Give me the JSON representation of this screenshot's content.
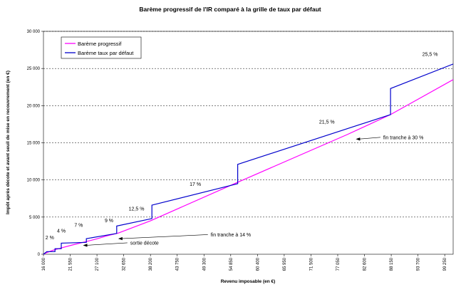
{
  "chart_data": {
    "type": "line",
    "title": "Barème progressif de l'IR comparé à la grille de taux par défaut",
    "xlabel": "Revenu imposable (en €)",
    "ylabel": "Impôt après décote et avant seuil de mise en recouvrement (en €)",
    "xlim": [
      16000,
      101000
    ],
    "ylim": [
      0,
      30000
    ],
    "x_ticks": [
      "16 000",
      "21 550",
      "27 100",
      "32 650",
      "38 200",
      "43 750",
      "49 300",
      "54 850",
      "60 400",
      "65 950",
      "71 500",
      "77 050",
      "82 600",
      "88 150",
      "93 700",
      "99 250"
    ],
    "x_tick_values": [
      16000,
      21550,
      27100,
      32650,
      38200,
      43750,
      49300,
      54850,
      60400,
      65950,
      71500,
      77050,
      82600,
      88150,
      93700,
      99250
    ],
    "y_ticks": [
      "0",
      "5 000",
      "10 000",
      "15 000",
      "20 000",
      "25 000",
      "30 000"
    ],
    "y_tick_values": [
      0,
      5000,
      10000,
      15000,
      20000,
      25000,
      30000
    ],
    "grid": "horizontal dashed",
    "legend_position": "top-left",
    "series": [
      {
        "name": "Barème progressif",
        "color": "#ff00ff",
        "points": [
          [
            16000,
            0
          ],
          [
            16600,
            200
          ],
          [
            18000,
            550
          ],
          [
            20000,
            900
          ],
          [
            22000,
            1250
          ],
          [
            24500,
            1650
          ],
          [
            27000,
            2050
          ],
          [
            29000,
            2450
          ],
          [
            31500,
            2850
          ],
          [
            38200,
            4500
          ],
          [
            56000,
            9600
          ],
          [
            79000,
            16100
          ],
          [
            88000,
            18800
          ],
          [
            101000,
            23500
          ]
        ]
      },
      {
        "name": "Barème taux par défaut",
        "color": "#0000cc",
        "points": [
          [
            16000,
            0
          ],
          [
            16700,
            350
          ],
          [
            17000,
            350
          ],
          [
            18400,
            350
          ],
          [
            18400,
            750
          ],
          [
            19700,
            750
          ],
          [
            19700,
            1500
          ],
          [
            24900,
            1600
          ],
          [
            24900,
            2100
          ],
          [
            31200,
            2800
          ],
          [
            31200,
            3800
          ],
          [
            38500,
            4800
          ],
          [
            38500,
            6600
          ],
          [
            56300,
            9500
          ],
          [
            56300,
            12100
          ],
          [
            88000,
            18800
          ],
          [
            88000,
            22300
          ],
          [
            101000,
            25600
          ]
        ]
      }
    ],
    "annotations": [
      {
        "text": "2 %",
        "x": 17300,
        "y": 2000
      },
      {
        "text": "4 %",
        "x": 19700,
        "y": 2900
      },
      {
        "text": "7 %",
        "x": 23300,
        "y": 3700
      },
      {
        "text": "9 %",
        "x": 29600,
        "y": 4300
      },
      {
        "text": "12,5 %",
        "x": 35300,
        "y": 5900
      },
      {
        "text": "17 %",
        "x": 47500,
        "y": 9200
      },
      {
        "text": "21,5 %",
        "x": 74800,
        "y": 17600
      },
      {
        "text": "25,5 %",
        "x": 96200,
        "y": 26700
      },
      {
        "text": "fin tranche à 30 %",
        "x": 86500,
        "y": 15500,
        "arrow_to": [
          80800,
          15500
        ]
      },
      {
        "text": "fin tranche à 14 %",
        "x": 50700,
        "y": 2400,
        "arrow_to": [
          31500,
          2100
        ]
      },
      {
        "text": "sortie décote",
        "x": 34000,
        "y": 1300,
        "arrow_to": [
          24200,
          1200
        ]
      }
    ]
  }
}
